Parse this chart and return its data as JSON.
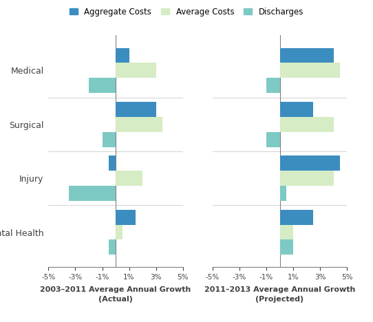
{
  "categories": [
    "Medical",
    "Surgical",
    "Injury",
    "Mental Health"
  ],
  "left_title": "2003–2011 Average Annual Growth\n(Actual)",
  "right_title": "2011–2013 Average Annual Growth\n(Projected)",
  "legend_labels": [
    "Aggregate Costs",
    "Average Costs",
    "Discharges"
  ],
  "colors": [
    "#3B8DC0",
    "#D6ECC4",
    "#7DC9C3"
  ],
  "left_data": {
    "Aggregate Costs": [
      1.0,
      3.0,
      -0.5,
      1.5
    ],
    "Average Costs": [
      3.0,
      3.5,
      2.0,
      0.5
    ],
    "Discharges": [
      -2.0,
      -1.0,
      -3.5,
      -0.5
    ]
  },
  "right_data": {
    "Aggregate Costs": [
      4.0,
      2.5,
      4.5,
      2.5
    ],
    "Average Costs": [
      4.5,
      4.0,
      4.0,
      1.0
    ],
    "Discharges": [
      -1.0,
      -1.0,
      0.5,
      1.0
    ]
  },
  "xlim": [
    -5,
    5
  ],
  "xticks": [
    -5,
    -3,
    -1,
    1,
    3,
    5
  ],
  "xticklabels": [
    "-5%",
    "-3%",
    "-1%",
    "1%",
    "3%",
    "5%"
  ],
  "background_color": "#FFFFFF",
  "bar_height": 0.28,
  "text_color": "#404040"
}
